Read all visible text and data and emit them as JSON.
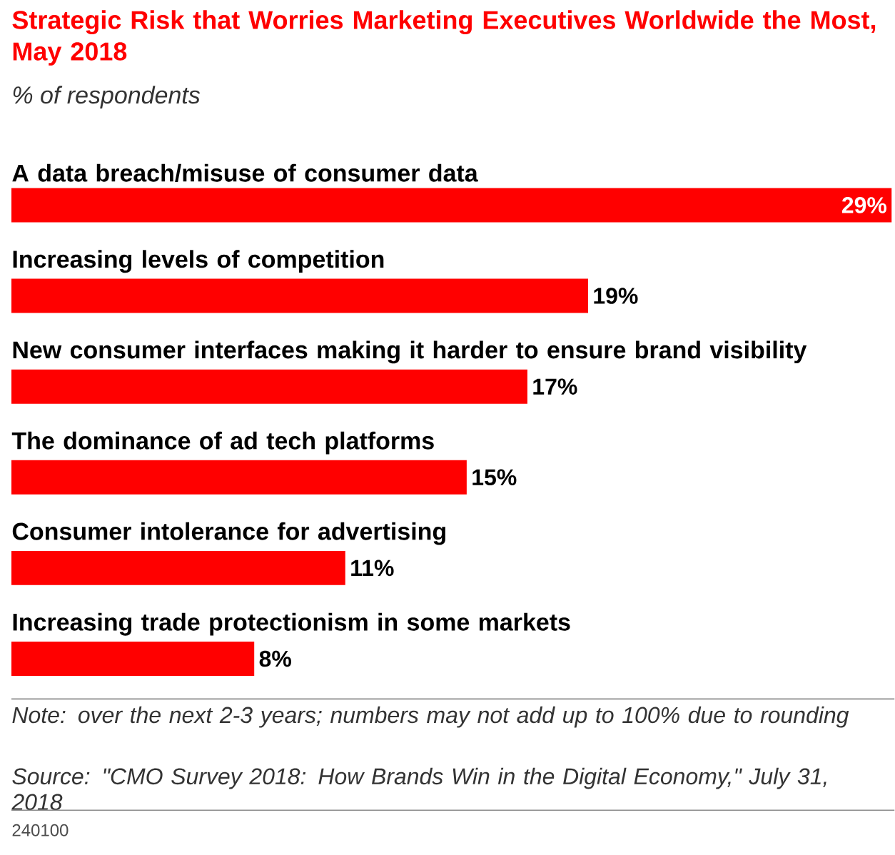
{
  "chart_data": {
    "type": "bar",
    "orientation": "horizontal",
    "title": "Strategic Risk that Worries Marketing Executives Worldwide the Most, May 2018",
    "subtitle": "% of respondents",
    "categories": [
      "A data breach/misuse of consumer data",
      "Increasing levels of competition",
      "New consumer interfaces making it harder to ensure brand visibility",
      "The dominance of ad tech platforms",
      "Consumer intolerance for advertising",
      "Increasing trade protectionism in some markets"
    ],
    "values": [
      29,
      19,
      17,
      15,
      11,
      8
    ],
    "value_labels": [
      "29%",
      "19%",
      "17%",
      "15%",
      "11%",
      "8%"
    ],
    "color": "#ff0000",
    "annotations": [
      "Note: over the next 2-3 years; numbers may not add up to 100% due to rounding",
      "Source: \"CMO Survey 2018: How Brands Win in the Digital Economy,\" July 31, 2018",
      "240100"
    ]
  }
}
